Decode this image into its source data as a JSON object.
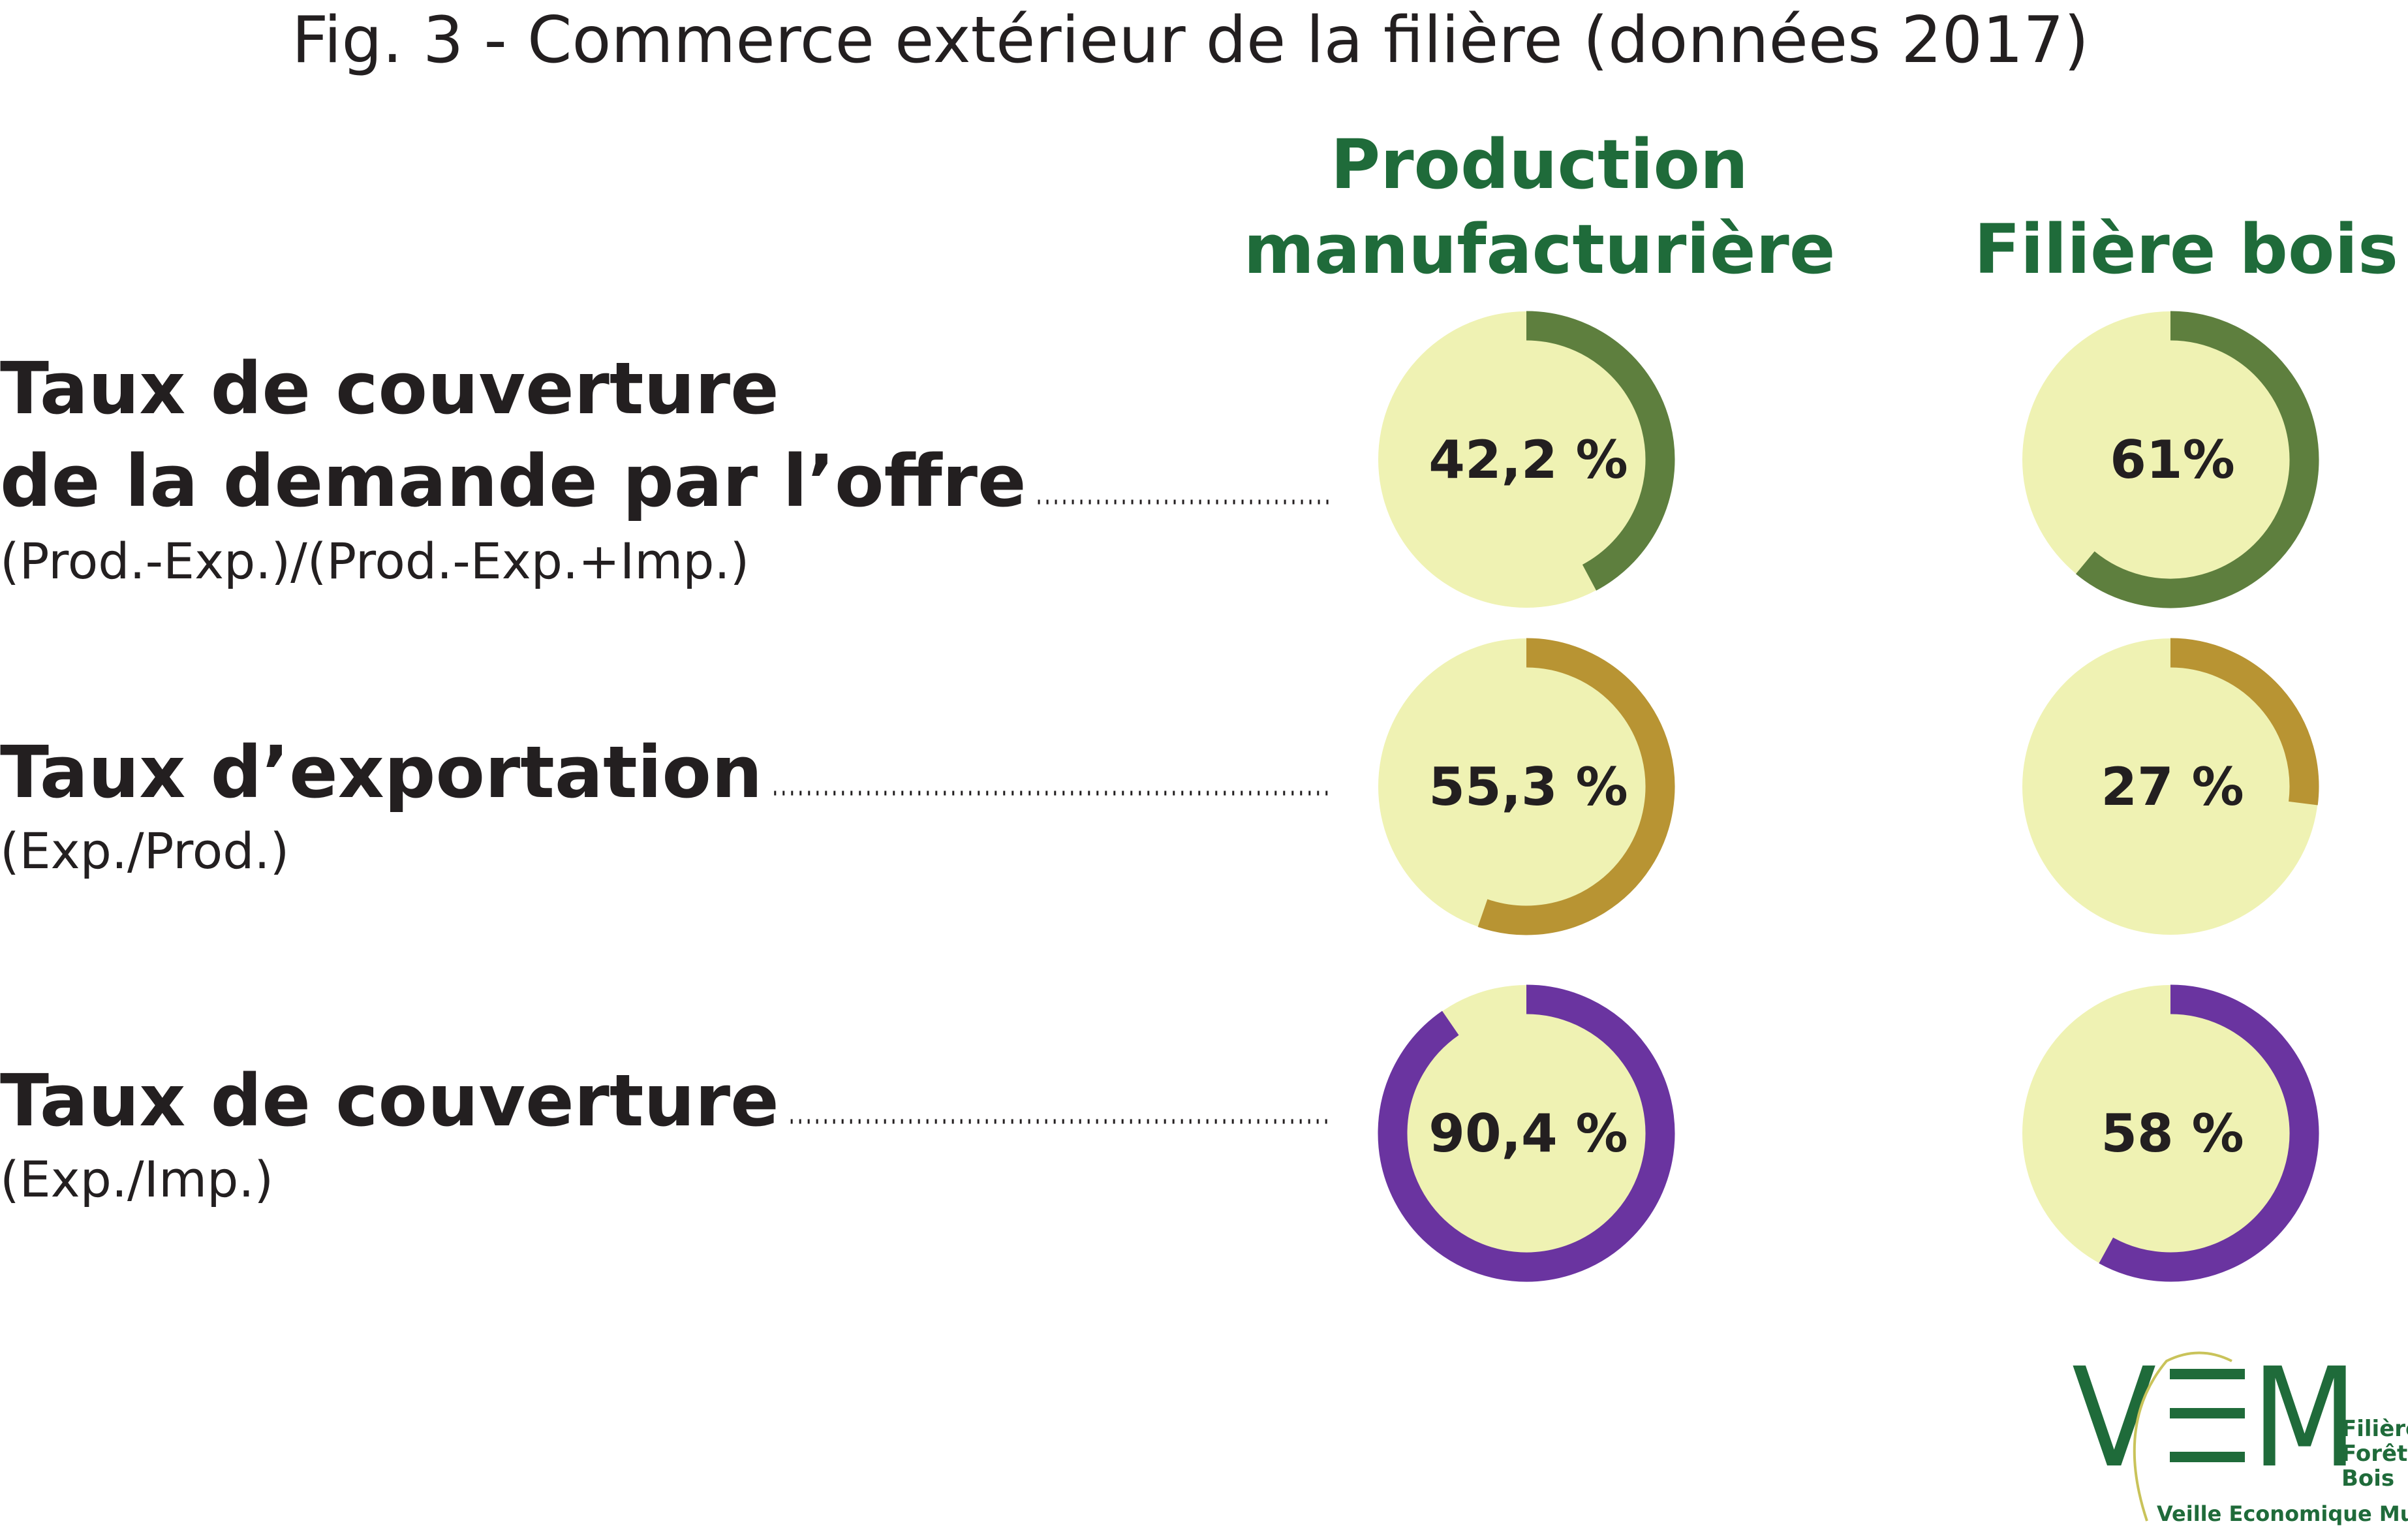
{
  "chart_data": {
    "type": "donut-grid",
    "title": "Fig. 3 - Commerce extérieur de la filière (données 2017)",
    "rows": [
      {
        "label": [
          "Taux de couverture",
          "de la demande par l’offre"
        ],
        "formula": "(Prod.-Exp.)/(Prod.-Exp.+Imp.)",
        "color": "#5e7f3e"
      },
      {
        "label": [
          "Taux d’exportation"
        ],
        "formula": "(Exp./Prod.)",
        "color": "#b89433"
      },
      {
        "label": [
          "Taux de couverture"
        ],
        "formula": "(Exp./Imp.)",
        "color": "#6a34a0"
      }
    ],
    "series": [
      {
        "name": [
          "Production",
          "manufacturière"
        ],
        "values": [
          42.2,
          55.3,
          90.4
        ],
        "value_labels": [
          "42,2 %",
          "55,3 %",
          "90,4 %"
        ]
      },
      {
        "name": [
          "Filière bois"
        ],
        "values": [
          61,
          27,
          58
        ],
        "value_labels": [
          "61%",
          "27 %",
          "58 %"
        ]
      }
    ],
    "ylim": [
      0,
      100
    ],
    "track_color": "#eff2b3"
  },
  "logo": {
    "letters": [
      "V",
      "M"
    ],
    "lines": [
      "Filière",
      "Forêt",
      "Bois"
    ],
    "tagline": "Veille Economique Mutualisée"
  }
}
